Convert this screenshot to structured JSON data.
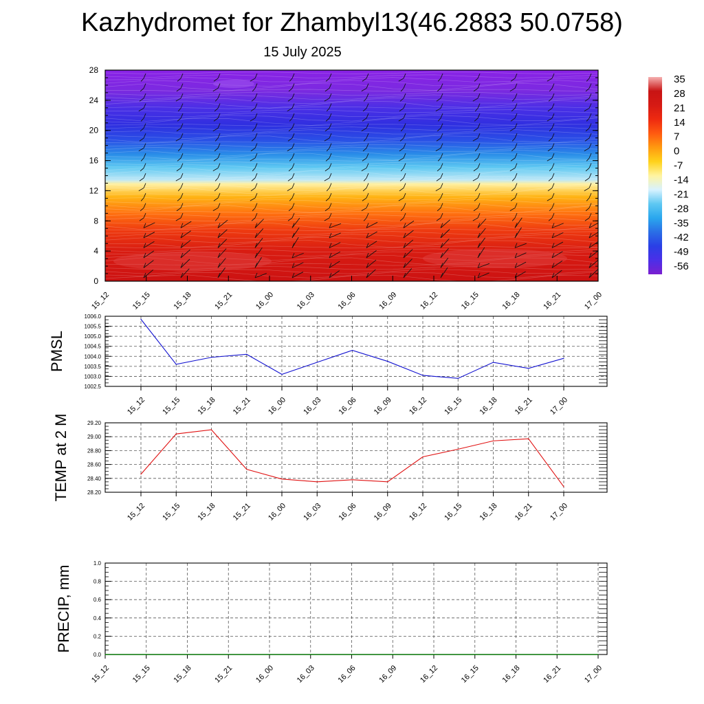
{
  "header": {
    "title": "Kazhydromet for Zhambyl13(46.2883 50.0758)",
    "subtitle": "15 July 2025"
  },
  "chart_data": [
    {
      "type": "heatmap",
      "ylim": [
        0,
        28
      ],
      "yticks": [
        "0",
        "4",
        "8",
        "12",
        "16",
        "20",
        "24",
        "28"
      ],
      "xticks": [
        "15_12",
        "15_15",
        "15_18",
        "15_21",
        "16_00",
        "16_03",
        "16_06",
        "16_09",
        "16_12",
        "16_15",
        "16_18",
        "16_21",
        "17_00"
      ],
      "colorbar": {
        "labels": [
          "35",
          "28",
          "21",
          "14",
          "7",
          "0",
          "-7",
          "-14",
          "-21",
          "-28",
          "-35",
          "-42",
          "-49",
          "-56"
        ],
        "range": [
          -60,
          36
        ],
        "colors": [
          "#7a1fd0",
          "#4b2fe8",
          "#2a3fe6",
          "#2a6ee6",
          "#2aa7ee",
          "#5ec8f2",
          "#d8f2ff",
          "#fff4a0",
          "#ffd21a",
          "#ff9a10",
          "#ff5a10",
          "#ee2a10",
          "#d61a14",
          "#c81414",
          "#f5b0b0"
        ]
      },
      "grid": false,
      "overlay": "wind barbs"
    },
    {
      "type": "line",
      "ylabel": "PMSL",
      "xticks": [
        "15_12",
        "15_15",
        "15_18",
        "15_21",
        "16_00",
        "16_03",
        "16_06",
        "16_09",
        "16_12",
        "16_15",
        "16_18",
        "16_21",
        "17_00"
      ],
      "yticks": [
        "1002.5",
        "1003.0",
        "1003.5",
        "1004.0",
        "1004.5",
        "1005.0",
        "1005.5",
        "1006.0"
      ],
      "ylim": [
        1002.5,
        1006.0
      ],
      "values": [
        1005.85,
        1003.6,
        1003.95,
        1004.1,
        1003.1,
        1003.7,
        1004.3,
        1003.75,
        1003.05,
        1002.9,
        1003.7,
        1003.4,
        1003.9
      ],
      "color": "#1010d0",
      "grid": true
    },
    {
      "type": "line",
      "ylabel": "TEMP at 2 M",
      "xticks": [
        "15_12",
        "15_15",
        "15_18",
        "15_21",
        "16_00",
        "16_03",
        "16_06",
        "16_09",
        "16_12",
        "16_15",
        "16_18",
        "16_21",
        "17_00"
      ],
      "yticks": [
        "28.20",
        "28.40",
        "28.60",
        "28.80",
        "29.00",
        "29.20"
      ],
      "ylim": [
        28.2,
        29.2
      ],
      "values": [
        28.46,
        29.04,
        29.1,
        28.53,
        28.39,
        28.35,
        28.38,
        28.35,
        28.71,
        28.82,
        28.94,
        28.97,
        28.28
      ],
      "color": "#e01010",
      "grid": true
    },
    {
      "type": "line",
      "ylabel": "PRECIP, mm",
      "xticks": [
        "15_12",
        "15_15",
        "15_18",
        "15_21",
        "16_00",
        "16_03",
        "16_06",
        "16_09",
        "16_12",
        "16_15",
        "16_18",
        "16_21",
        "17_00"
      ],
      "yticks": [
        "0.0",
        "0.2",
        "0.4",
        "0.6",
        "0.8",
        "1.0"
      ],
      "ylim": [
        0,
        1.0
      ],
      "values": [
        0,
        0,
        0,
        0,
        0,
        0,
        0,
        0,
        0,
        0,
        0,
        0,
        0
      ],
      "color": "#0a7a0a",
      "grid": true
    }
  ]
}
